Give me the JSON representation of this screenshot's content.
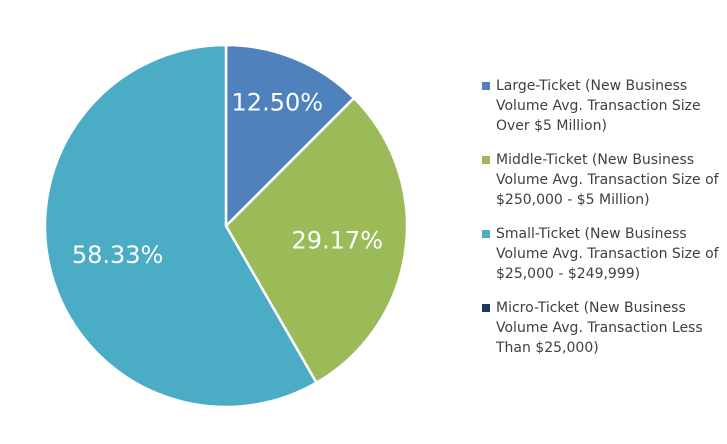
{
  "chart_data": {
    "type": "pie",
    "title": "",
    "legend_position": "right",
    "slices": [
      {
        "label": "Large-Ticket (New Business Volume Avg. Transaction Size Over $5 Million)",
        "value": 12.5,
        "display": "12.50%",
        "color": "#4F81BD"
      },
      {
        "label": "Middle-Ticket (New Business Volume Avg. Transaction Size of $250,000 - $5 Million)",
        "value": 29.17,
        "display": "29.17%",
        "color": "#9BBB59"
      },
      {
        "label": "Small-Ticket (New Business Volume Avg. Transaction Size of $25,000 - $249,999)",
        "value": 58.33,
        "display": "58.33%",
        "color": "#4BACC6"
      },
      {
        "label": "Micro-Ticket (New Business Volume Avg. Transaction Less Than $25,000)",
        "value": 0,
        "display": "",
        "color": "#1F3864"
      }
    ]
  }
}
